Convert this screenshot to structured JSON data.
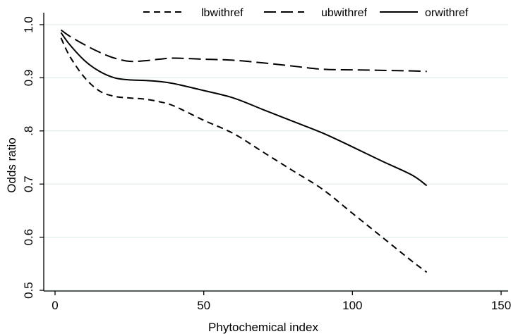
{
  "chart_data": {
    "type": "line",
    "title": "",
    "xlabel": "Phytochemical index",
    "ylabel": "Odds ratio",
    "xlim": [
      0,
      150
    ],
    "ylim": [
      0.5,
      1.0
    ],
    "x_ticks": [
      0,
      50,
      100,
      150
    ],
    "x_tick_labels": [
      "0",
      "50",
      "100",
      "150"
    ],
    "y_ticks": [
      0.5,
      0.6,
      0.7,
      0.8,
      0.9,
      1.0
    ],
    "y_tick_labels": [
      "0.5",
      "0.6",
      "0.7",
      ".8",
      "0.9",
      "1.0"
    ],
    "grid": "horizontal",
    "legend_position": "top",
    "colors": {
      "line": "#000000",
      "grid": "#dce8ea",
      "axis": "#000000"
    },
    "series": [
      {
        "name": "lbwithref",
        "style": "short-dash",
        "x": [
          2,
          5,
          10,
          15,
          20,
          25,
          30,
          35,
          40,
          50,
          60,
          70,
          80,
          90,
          100,
          110,
          120,
          125
        ],
        "y": [
          0.975,
          0.94,
          0.9,
          0.875,
          0.865,
          0.862,
          0.86,
          0.855,
          0.847,
          0.82,
          0.795,
          0.76,
          0.725,
          0.69,
          0.645,
          0.6,
          0.555,
          0.534
        ]
      },
      {
        "name": "ubwithref",
        "style": "long-dash",
        "x": [
          2,
          5,
          10,
          15,
          20,
          25,
          30,
          35,
          40,
          50,
          60,
          70,
          80,
          90,
          100,
          110,
          120,
          125
        ],
        "y": [
          0.99,
          0.978,
          0.962,
          0.948,
          0.937,
          0.931,
          0.932,
          0.935,
          0.937,
          0.935,
          0.933,
          0.928,
          0.922,
          0.916,
          0.915,
          0.914,
          0.913,
          0.912
        ]
      },
      {
        "name": "orwithref",
        "style": "solid",
        "x": [
          2,
          5,
          10,
          15,
          20,
          25,
          30,
          35,
          40,
          50,
          60,
          70,
          80,
          90,
          100,
          110,
          120,
          125
        ],
        "y": [
          0.985,
          0.962,
          0.932,
          0.912,
          0.9,
          0.896,
          0.895,
          0.893,
          0.889,
          0.876,
          0.862,
          0.84,
          0.818,
          0.796,
          0.77,
          0.743,
          0.717,
          0.697
        ]
      }
    ]
  }
}
